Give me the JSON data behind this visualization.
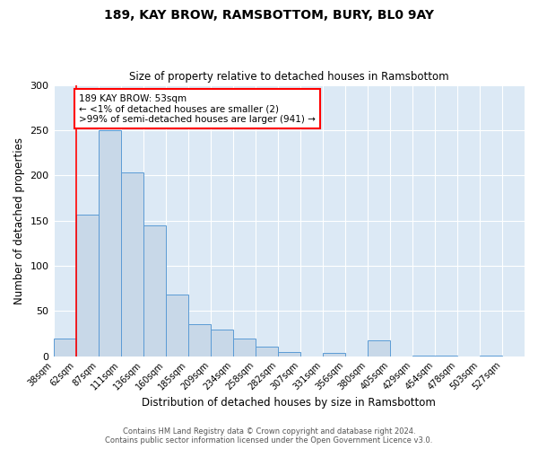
{
  "title": "189, KAY BROW, RAMSBOTTOM, BURY, BL0 9AY",
  "subtitle": "Size of property relative to detached houses in Ramsbottom",
  "xlabel": "Distribution of detached houses by size in Ramsbottom",
  "ylabel": "Number of detached properties",
  "bar_color": "#c8d8e8",
  "bar_edge_color": "#5b9bd5",
  "background_color": "#dce9f5",
  "bin_labels": [
    "38sqm",
    "62sqm",
    "87sqm",
    "111sqm",
    "136sqm",
    "160sqm",
    "185sqm",
    "209sqm",
    "234sqm",
    "258sqm",
    "282sqm",
    "307sqm",
    "331sqm",
    "356sqm",
    "380sqm",
    "405sqm",
    "429sqm",
    "454sqm",
    "478sqm",
    "503sqm",
    "527sqm"
  ],
  "bar_heights": [
    19,
    157,
    250,
    203,
    145,
    68,
    35,
    29,
    19,
    11,
    5,
    0,
    4,
    0,
    17,
    0,
    1,
    1,
    0,
    1,
    0
  ],
  "ylim": [
    0,
    300
  ],
  "yticks": [
    0,
    50,
    100,
    150,
    200,
    250,
    300
  ],
  "annotation_text": "189 KAY BROW: 53sqm\n← <1% of detached houses are smaller (2)\n>99% of semi-detached houses are larger (941) →",
  "annotation_box_color": "white",
  "annotation_box_edge_color": "red",
  "footer_line1": "Contains HM Land Registry data © Crown copyright and database right 2024.",
  "footer_line2": "Contains public sector information licensed under the Open Government Licence v3.0."
}
